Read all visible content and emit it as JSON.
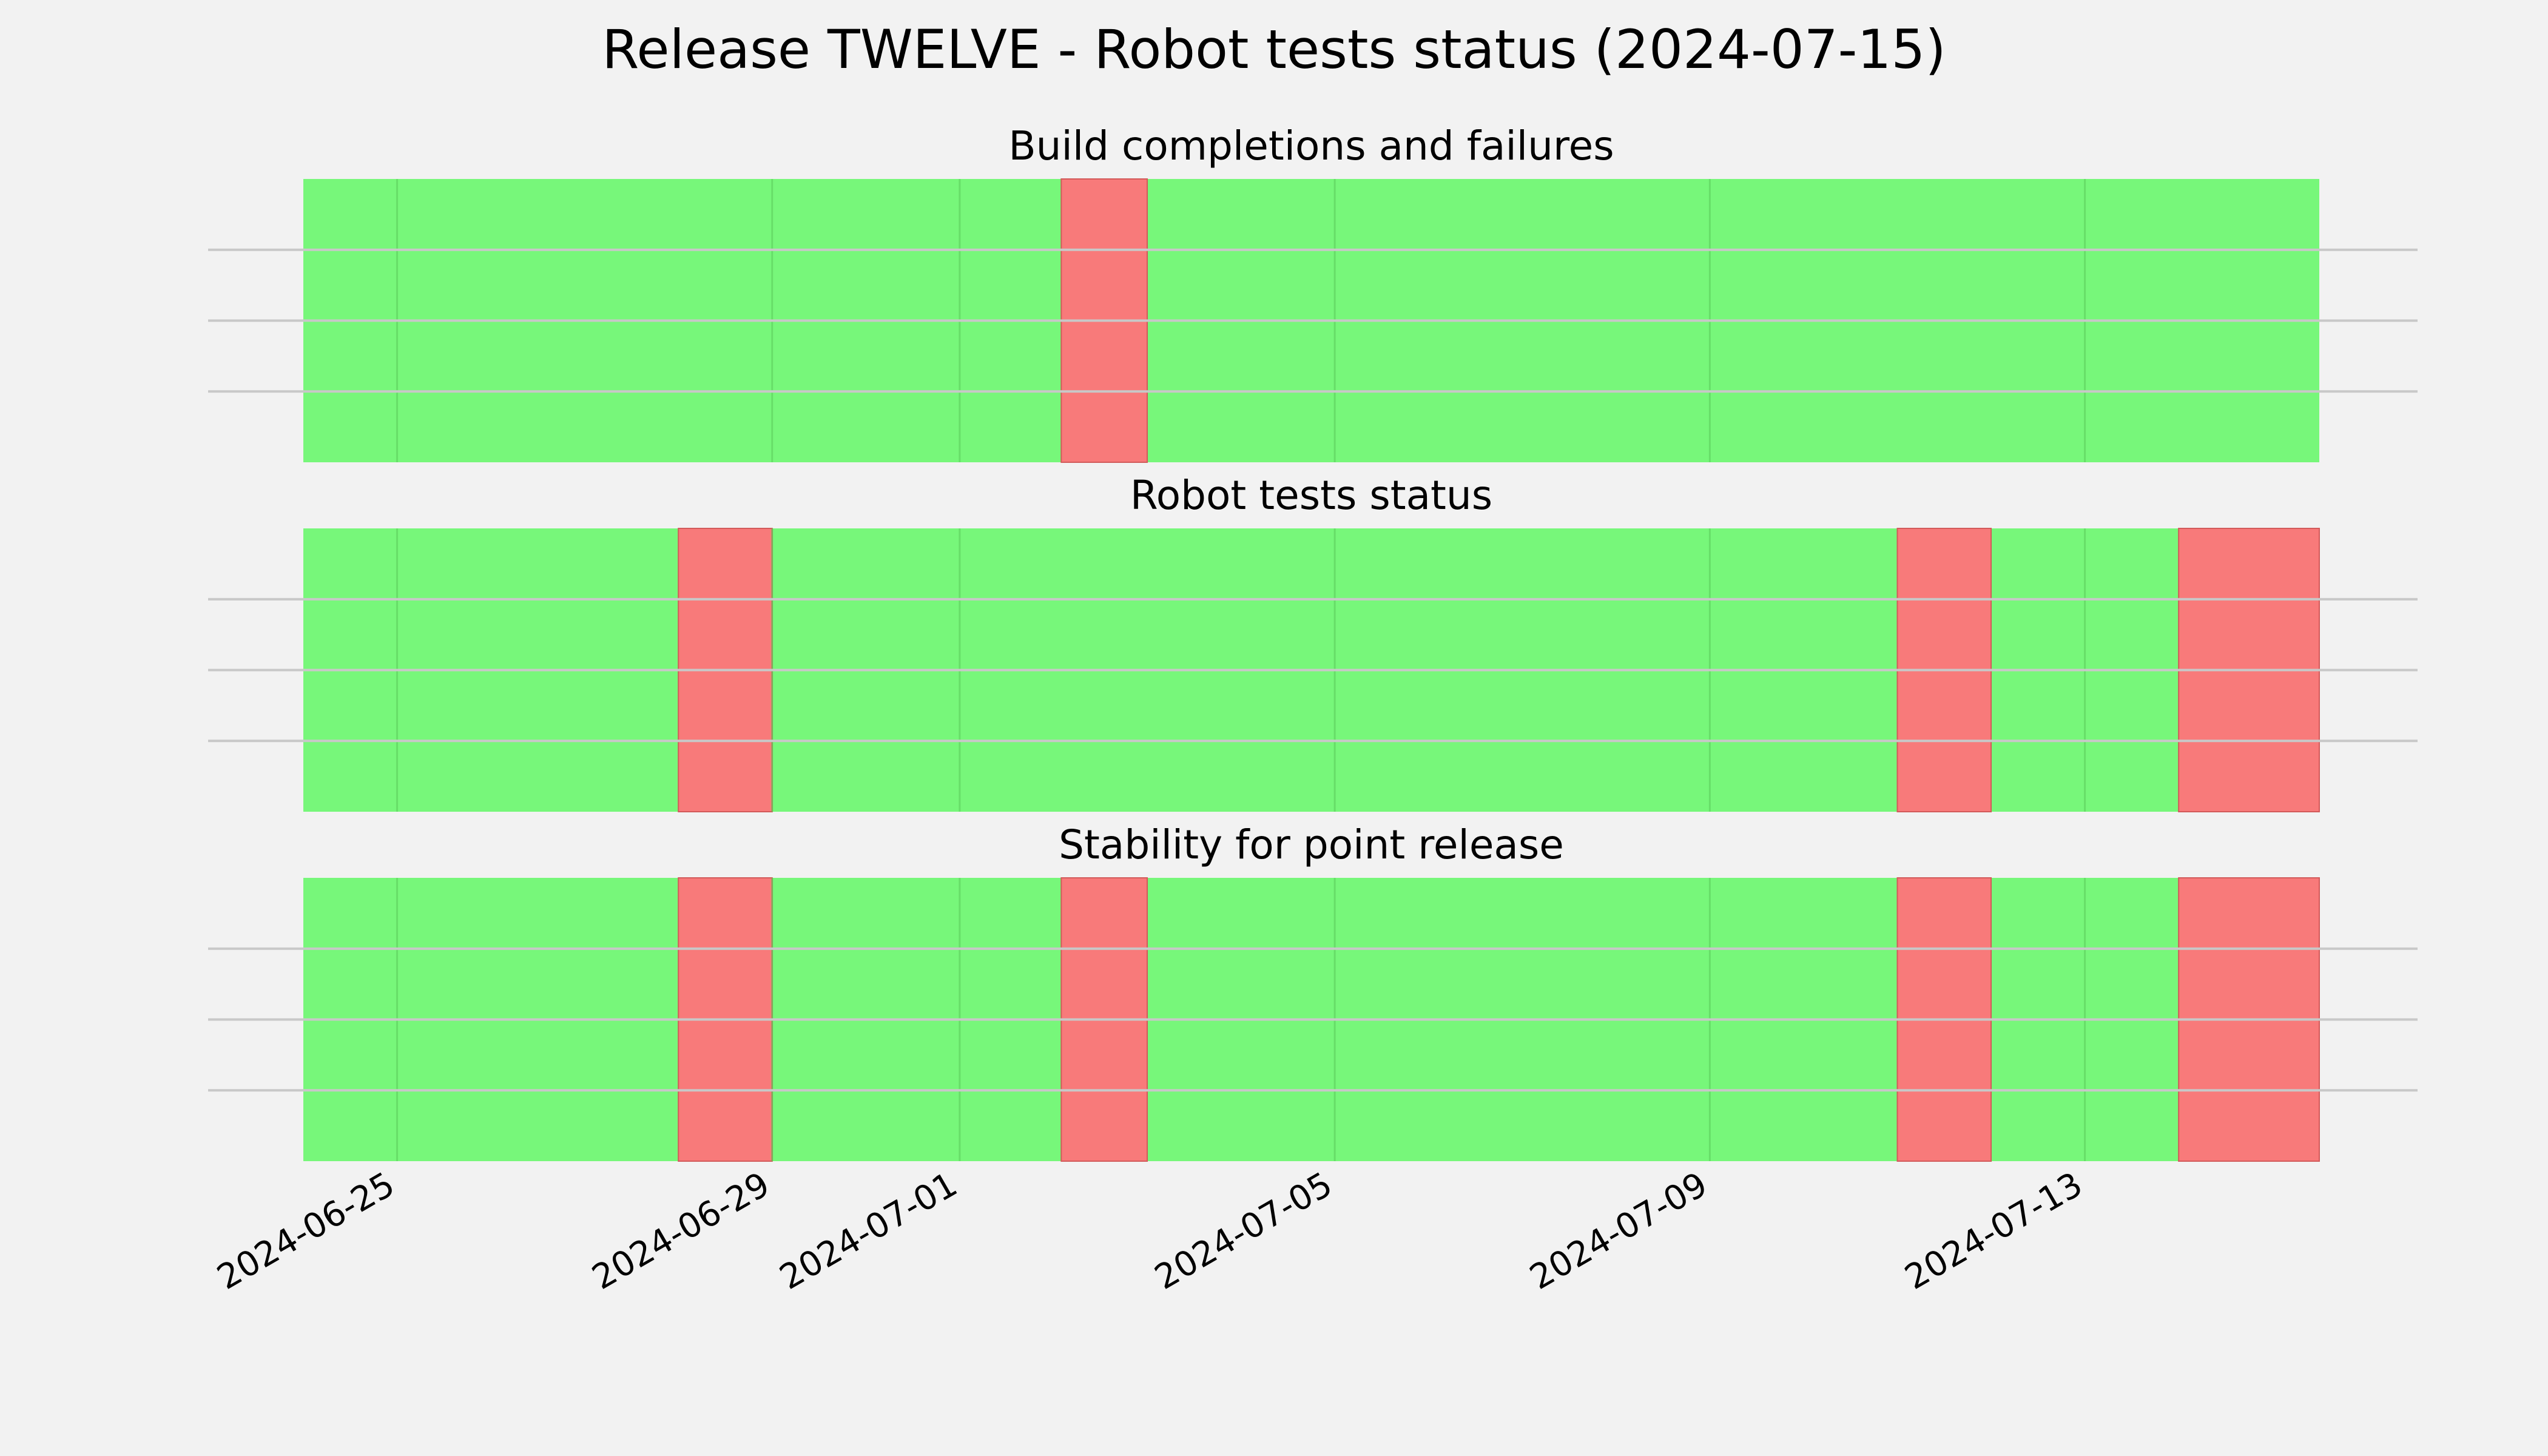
{
  "chart_data": {
    "type": "timeline",
    "title": "Release TWELVE - Robot tests status (2024-07-15)",
    "x_range": [
      "2024-06-24",
      "2024-07-15T12:00"
    ],
    "x_ticks": [
      "2024-06-25",
      "2024-06-29",
      "2024-07-01",
      "2024-07-05",
      "2024-07-09",
      "2024-07-13"
    ],
    "colors": {
      "pass": "#77f77a",
      "fail": "#f87a7a",
      "background": "#f2f2f2"
    },
    "panels": [
      {
        "title": "Build completions and failures",
        "fail_intervals": [
          {
            "start": "2024-07-02T02:00",
            "end": "2024-07-03"
          }
        ]
      },
      {
        "title": "Robot tests status",
        "fail_intervals": [
          {
            "start": "2024-06-28",
            "end": "2024-06-29"
          },
          {
            "start": "2024-07-11",
            "end": "2024-07-12"
          },
          {
            "start": "2024-07-14",
            "end": "2024-07-15T12:00"
          }
        ]
      },
      {
        "title": "Stability for point release",
        "fail_intervals": [
          {
            "start": "2024-06-28",
            "end": "2024-06-29"
          },
          {
            "start": "2024-07-02T02:00",
            "end": "2024-07-03"
          },
          {
            "start": "2024-07-11",
            "end": "2024-07-12"
          },
          {
            "start": "2024-07-14",
            "end": "2024-07-15T12:00"
          }
        ]
      }
    ]
  }
}
